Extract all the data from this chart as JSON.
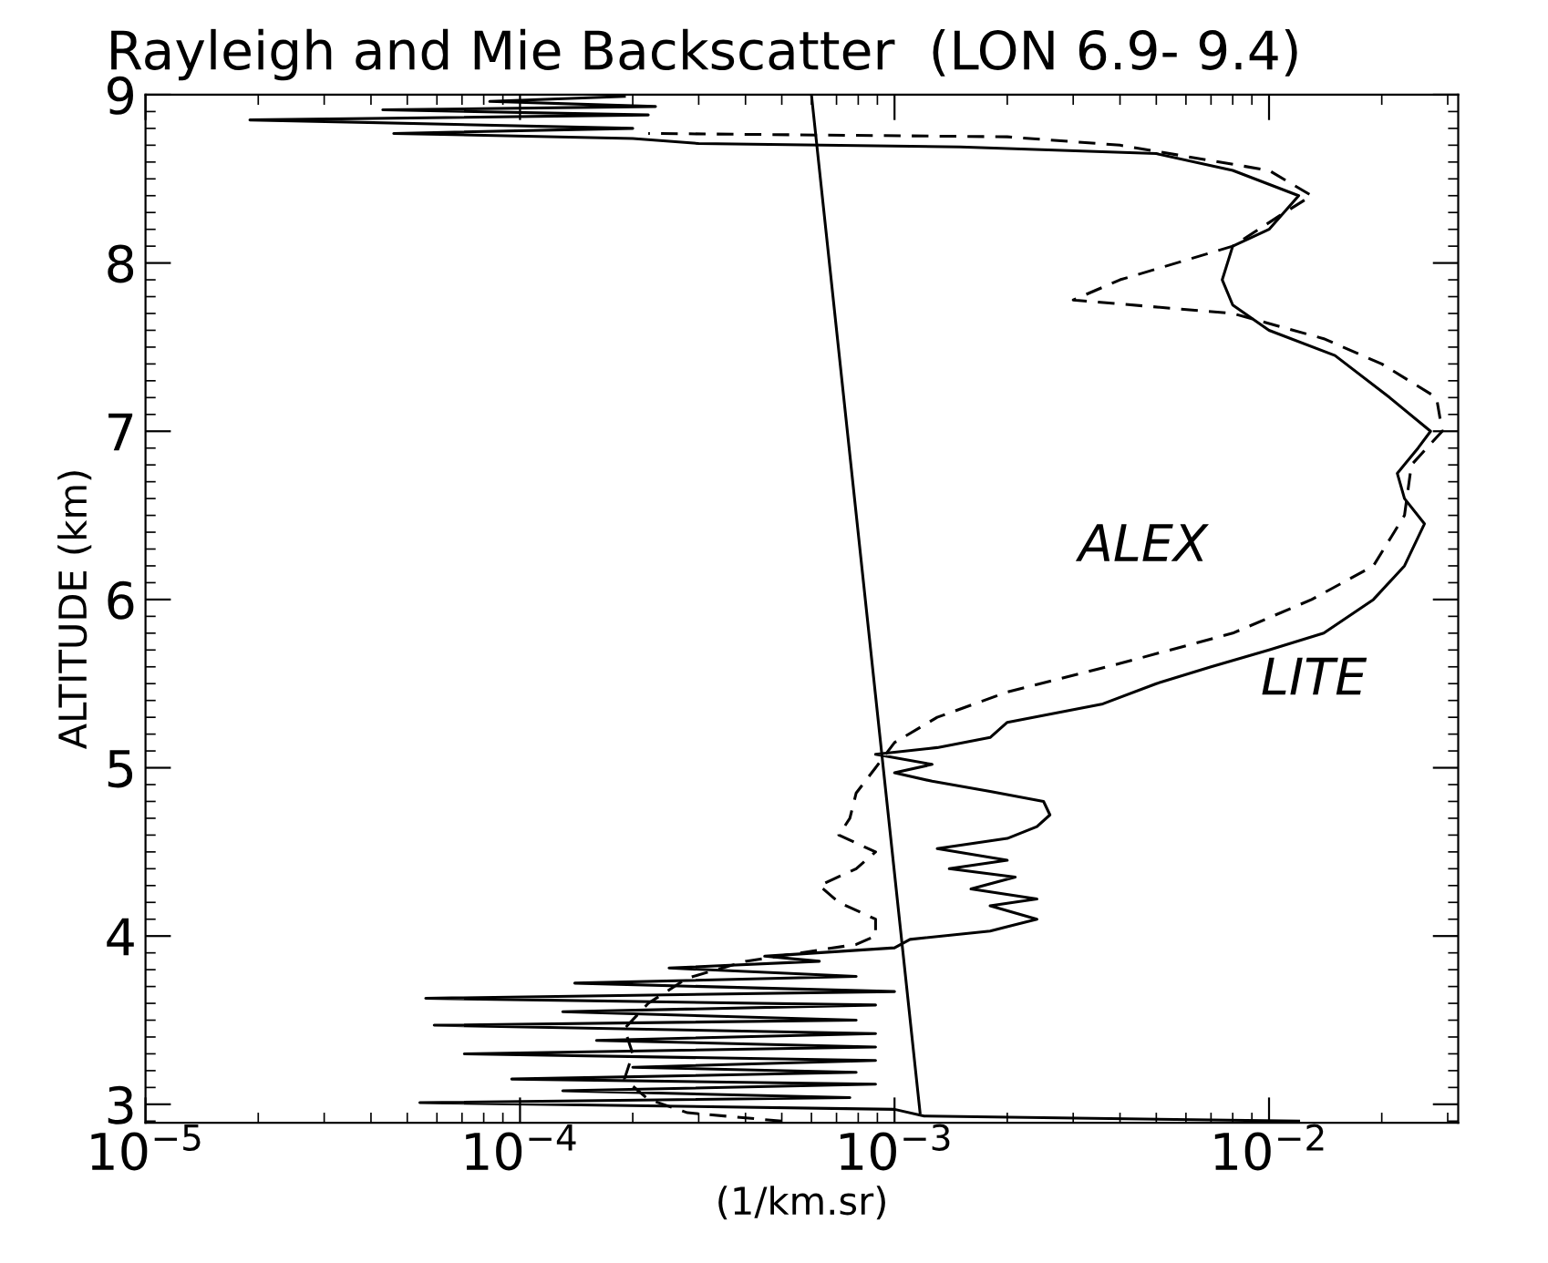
{
  "chart_data": {
    "type": "line",
    "title": "Rayleigh and Mie Backscatter  (LON 6.9- 9.4)",
    "xlabel": "(1/km.sr)",
    "ylabel": "ALTITUDE (km)",
    "log": "x",
    "xlim": [
      1e-05,
      0.032
    ],
    "ylim": [
      2.89,
      9
    ],
    "xticks": [
      {
        "value": 1e-05,
        "label": "10$^{−5}$"
      },
      {
        "value": 0.0001,
        "label": "10$^{−4}$"
      },
      {
        "value": 0.001,
        "label": "10$^{−3}$"
      },
      {
        "value": 0.01,
        "label": "10$^{−2}$"
      }
    ],
    "yticks": [
      3,
      4,
      5,
      6,
      7,
      8,
      9
    ],
    "grid": false,
    "legend": "right",
    "marker": "none",
    "series": [
      {
        "name": "LITE",
        "color": "#000000",
        "line_style": "solid",
        "x": [
          0.012,
          0.0012,
          0.001,
          5.4e-05,
          0.00076,
          0.00013,
          0.00089,
          9.5e-05,
          0.00079,
          0.0002,
          0.00089,
          7.1e-05,
          0.00089,
          0.00016,
          0.00089,
          5.9e-05,
          0.00079,
          0.00013,
          0.00089,
          5.6e-05,
          0.001,
          0.00014,
          0.00079,
          0.00025,
          0.00063,
          0.00045,
          0.001,
          0.0011,
          0.0018,
          0.0024,
          0.0018,
          0.0024,
          0.0016,
          0.0021,
          0.0014,
          0.002,
          0.0013,
          0.002,
          0.0024,
          0.0026,
          0.0025,
          0.0018,
          0.00126,
          0.001,
          0.00126,
          0.00089,
          0.0013,
          0.0018,
          0.002,
          0.0036,
          0.005,
          0.007,
          0.01,
          0.014,
          0.019,
          0.023,
          0.026,
          0.023,
          0.022,
          0.025,
          0.027,
          0.021,
          0.015,
          0.01,
          0.008,
          0.0075,
          0.008,
          0.01,
          0.012,
          0.008,
          0.005,
          0.0015,
          0.0003,
          0.0002,
          4.6e-05,
          0.0002,
          1.9e-05,
          0.00022,
          4.3e-05,
          0.00023,
          8.3e-05,
          0.00019
        ],
        "values": [
          2.9,
          2.93,
          2.97,
          3.01,
          3.04,
          3.08,
          3.12,
          3.15,
          3.19,
          3.22,
          3.26,
          3.3,
          3.34,
          3.38,
          3.42,
          3.47,
          3.5,
          3.55,
          3.59,
          3.63,
          3.67,
          3.72,
          3.76,
          3.81,
          3.85,
          3.88,
          3.93,
          3.98,
          4.03,
          4.1,
          4.18,
          4.22,
          4.28,
          4.35,
          4.4,
          4.45,
          4.52,
          4.58,
          4.65,
          4.72,
          4.8,
          4.86,
          4.92,
          4.97,
          5.02,
          5.08,
          5.12,
          5.18,
          5.27,
          5.38,
          5.5,
          5.6,
          5.7,
          5.8,
          6.0,
          6.2,
          6.45,
          6.6,
          6.75,
          6.9,
          7.0,
          7.2,
          7.45,
          7.6,
          7.75,
          7.9,
          8.1,
          8.2,
          8.4,
          8.55,
          8.65,
          8.69,
          8.71,
          8.74,
          8.77,
          8.8,
          8.85,
          8.88,
          8.91,
          8.93,
          8.96,
          8.99
        ]
      },
      {
        "name": "ALEX",
        "color": "#000000",
        "line_style": "dashed",
        "x": [
          0.0005,
          0.00028,
          0.00022,
          0.00019,
          0.0002,
          0.00019,
          0.00022,
          0.00028,
          0.0004,
          0.00056,
          0.00079,
          0.00089,
          0.00089,
          0.00071,
          0.00063,
          0.00079,
          0.00089,
          0.00071,
          0.00076,
          0.00079,
          0.00089,
          0.001,
          0.0013,
          0.002,
          0.004,
          0.008,
          0.013,
          0.019,
          0.023,
          0.024,
          0.029,
          0.028,
          0.02,
          0.014,
          0.008,
          0.003,
          0.004,
          0.008,
          0.011,
          0.013,
          0.01,
          0.004,
          0.002,
          0.00022
        ],
        "values": [
          2.9,
          2.95,
          3.03,
          3.15,
          3.3,
          3.45,
          3.6,
          3.75,
          3.85,
          3.9,
          3.95,
          4.0,
          4.1,
          4.2,
          4.3,
          4.4,
          4.5,
          4.6,
          4.7,
          4.85,
          5.0,
          5.15,
          5.3,
          5.45,
          5.62,
          5.8,
          6.0,
          6.2,
          6.5,
          6.8,
          7.0,
          7.2,
          7.4,
          7.55,
          7.7,
          7.78,
          7.9,
          8.1,
          8.3,
          8.4,
          8.55,
          8.7,
          8.75,
          8.77
        ]
      },
      {
        "color": "#000000",
        "line_style": "solid",
        "x": [
          0.0006,
          0.00117
        ],
        "values": [
          9.0,
          2.95
        ]
      }
    ]
  }
}
